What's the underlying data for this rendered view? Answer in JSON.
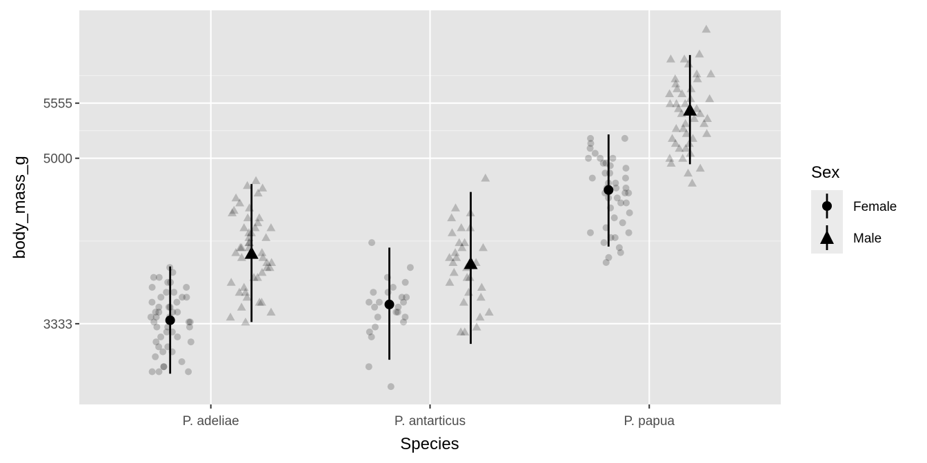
{
  "chart_data": {
    "type": "scatter",
    "title": "",
    "xlabel": "Species",
    "ylabel": "body_mass_g",
    "categories": [
      "P. adeliae",
      "P. antarticus",
      "P. papua"
    ],
    "y_ticks": [
      {
        "value": 3333,
        "label": "3333"
      },
      {
        "value": 5000,
        "label": "5000"
      },
      {
        "value": 5555,
        "label": "5555"
      }
    ],
    "ylim": [
      2520,
      6490
    ],
    "grid": true,
    "legend": {
      "title": "Sex",
      "position": "right",
      "entries": [
        {
          "label": "Female",
          "shape": "circle"
        },
        {
          "label": "Male",
          "shape": "triangle"
        }
      ]
    },
    "summary": [
      {
        "category": "P. adeliae",
        "sex": "Female",
        "mean": 3368,
        "low": 2830,
        "high": 3910
      },
      {
        "category": "P. adeliae",
        "sex": "Male",
        "mean": 4043,
        "low": 3350,
        "high": 4740
      },
      {
        "category": "P. antarticus",
        "sex": "Female",
        "mean": 3527,
        "low": 2970,
        "high": 4100
      },
      {
        "category": "P. antarticus",
        "sex": "Male",
        "mean": 3939,
        "low": 3130,
        "high": 4660
      },
      {
        "category": "P. papua",
        "sex": "Female",
        "mean": 4680,
        "low": 4110,
        "high": 5240
      },
      {
        "category": "P. papua",
        "sex": "Male",
        "mean": 5485,
        "low": 4940,
        "high": 6040
      }
    ],
    "points": [
      {
        "category": "P. adeliae",
        "sex": "Female",
        "values": [
          3900,
          3850,
          3800,
          3800,
          3750,
          3750,
          3700,
          3700,
          3650,
          3650,
          3600,
          3600,
          3550,
          3550,
          3500,
          3500,
          3450,
          3450,
          3450,
          3400,
          3400,
          3400,
          3350,
          3350,
          3350,
          3300,
          3300,
          3300,
          3250,
          3250,
          3200,
          3200,
          3150,
          3150,
          3100,
          3100,
          3050,
          3050,
          3000,
          2950,
          2900,
          2900,
          2850,
          2850,
          2850,
          3600,
          3500,
          3450
        ]
      },
      {
        "category": "P. adeliae",
        "sex": "Male",
        "values": [
          4775,
          4725,
          4700,
          4650,
          4600,
          4550,
          4500,
          4475,
          4450,
          4400,
          4400,
          4350,
          4300,
          4300,
          4250,
          4250,
          4200,
          4200,
          4150,
          4150,
          4100,
          4100,
          4050,
          4050,
          4000,
          4000,
          3950,
          3950,
          3900,
          3900,
          3850,
          3800,
          3800,
          3750,
          3700,
          3650,
          3650,
          3600,
          3550,
          3550,
          3500,
          3450,
          3400,
          3350,
          4300,
          4100
        ]
      },
      {
        "category": "P. antarticus",
        "sex": "Female",
        "values": [
          4150,
          3900,
          3800,
          3750,
          3700,
          3650,
          3650,
          3600,
          3600,
          3550,
          3550,
          3500,
          3500,
          3450,
          3450,
          3400,
          3400,
          3350,
          3300,
          3250,
          3200,
          2900,
          2700,
          3550
        ]
      },
      {
        "category": "P. antarticus",
        "sex": "Male",
        "values": [
          4800,
          4500,
          4450,
          4400,
          4300,
          4300,
          4250,
          4150,
          4150,
          4100,
          4100,
          4050,
          4000,
          4000,
          3950,
          3950,
          3900,
          3850,
          3800,
          3800,
          3750,
          3700,
          3650,
          3600,
          3550,
          3450,
          3400,
          3300,
          3250,
          3250
        ]
      },
      {
        "category": "P. papua",
        "sex": "Female",
        "values": [
          5200,
          5200,
          5150,
          5100,
          5050,
          5000,
          5000,
          5000,
          4950,
          4950,
          4925,
          4900,
          4850,
          4850,
          4800,
          4800,
          4750,
          4750,
          4700,
          4700,
          4700,
          4650,
          4650,
          4650,
          4600,
          4600,
          4550,
          4550,
          4500,
          4450,
          4400,
          4350,
          4300,
          4250,
          4250,
          4200,
          4200,
          4150,
          4100,
          4050,
          4000,
          3950
        ]
      },
      {
        "category": "P. papua",
        "sex": "Male",
        "values": [
          6300,
          6050,
          6000,
          6000,
          5950,
          5850,
          5850,
          5800,
          5800,
          5750,
          5700,
          5700,
          5650,
          5650,
          5600,
          5600,
          5550,
          5550,
          5550,
          5500,
          5500,
          5450,
          5450,
          5400,
          5400,
          5350,
          5350,
          5300,
          5300,
          5250,
          5250,
          5200,
          5200,
          5150,
          5150,
          5100,
          5100,
          5050,
          5000,
          5000,
          4950,
          4900,
          4850,
          4750
        ]
      }
    ]
  }
}
